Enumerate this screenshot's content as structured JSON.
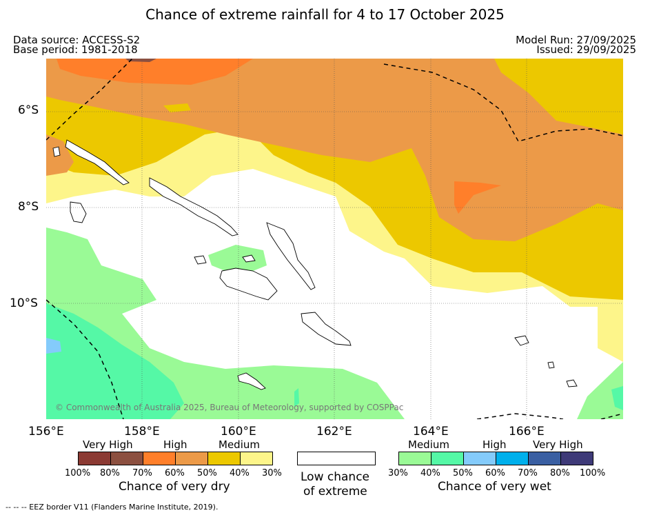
{
  "title": "Chance of extreme rainfall for 4 to 17 October 2025",
  "meta": {
    "data_source": "Data source: ACCESS-S2",
    "base_period": "Base period: 1981-2018",
    "model_run": "Model Run: 27/09/2025",
    "issued": "Issued: 29/09/2025"
  },
  "axes": {
    "lat_labels": [
      "6°S",
      "8°S",
      "10°S"
    ],
    "lon_labels": [
      "156°E",
      "158°E",
      "160°E",
      "162°E",
      "164°E",
      "166°E"
    ]
  },
  "copyright": "© Commonwealth of Australia 2025, Bureau of Meteorology, supported by COSPPac",
  "legend": {
    "dry": {
      "levels": [
        "Very High",
        "High",
        "Medium"
      ],
      "percents": [
        "100%",
        "80%",
        "70%",
        "60%",
        "50%",
        "40%",
        "30%"
      ],
      "colors": [
        "#8b3a33",
        "#8c5040",
        "#ff7f2a",
        "#ec9a48",
        "#ecc800",
        "#fdf58a"
      ],
      "caption": "Chance of very dry"
    },
    "low": {
      "line1": "Low chance",
      "line2": "of extreme",
      "color": "#ffffff"
    },
    "wet": {
      "levels": [
        "Medium",
        "High",
        "Very High"
      ],
      "percents": [
        "30%",
        "40%",
        "50%",
        "60%",
        "70%",
        "80%",
        "100%"
      ],
      "colors": [
        "#9afa96",
        "#55f8a6",
        "#84cbfb",
        "#00b0ec",
        "#3a5fa2",
        "#3e3a78"
      ],
      "caption": "Chance of very wet"
    }
  },
  "footer": "--  --  -- EEZ border V11 (Flanders Marine Institute, 2019)."
}
